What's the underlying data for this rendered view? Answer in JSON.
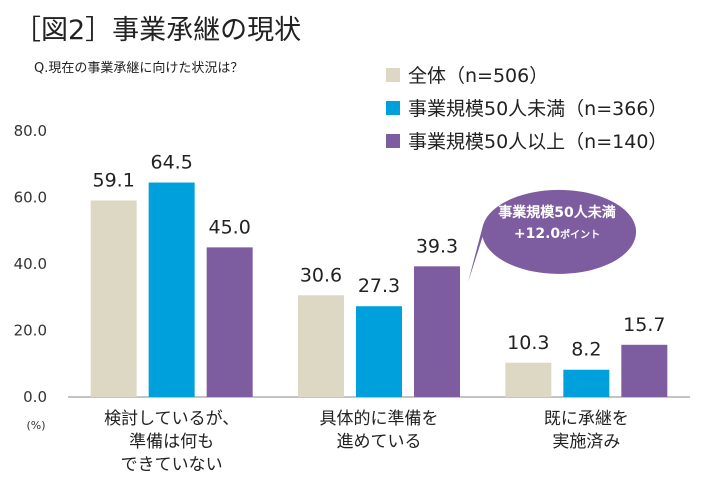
{
  "header": {
    "title": "［図2］事業承継の現状",
    "subtitle": "Q.現在の事業承継に向けた状況は？"
  },
  "chart_data": {
    "type": "bar",
    "categories": [
      [
        "検討しているが、",
        "準備は何も",
        "できていない"
      ],
      [
        "具体的に準備を",
        "進めている"
      ],
      [
        "既に承継を",
        "実施済み"
      ]
    ],
    "series": [
      {
        "name": "全体（n=506）",
        "color": "#dcd8c4",
        "values": [
          59.1,
          30.6,
          10.3
        ]
      },
      {
        "name": "事業規模50人未満（n=366）",
        "color": "#00a0dc",
        "values": [
          64.5,
          27.3,
          8.2
        ]
      },
      {
        "name": "事業規模50人以上（n=140）",
        "color": "#7d5c9f",
        "values": [
          45.0,
          39.3,
          15.7
        ]
      }
    ],
    "ylim": [
      0,
      80
    ],
    "yticks": [
      "0.0",
      "20.0",
      "40.0",
      "60.0",
      "80.0"
    ],
    "ytick_values": [
      0,
      20,
      40,
      60,
      80
    ],
    "unit_label": "(%)",
    "legend_position": "top-right",
    "grid": false,
    "annotation": {
      "line1": "事業規模50人未満",
      "line2": "+12.0",
      "line2_suffix": "ポイント",
      "color": "#7d5c9f"
    }
  }
}
